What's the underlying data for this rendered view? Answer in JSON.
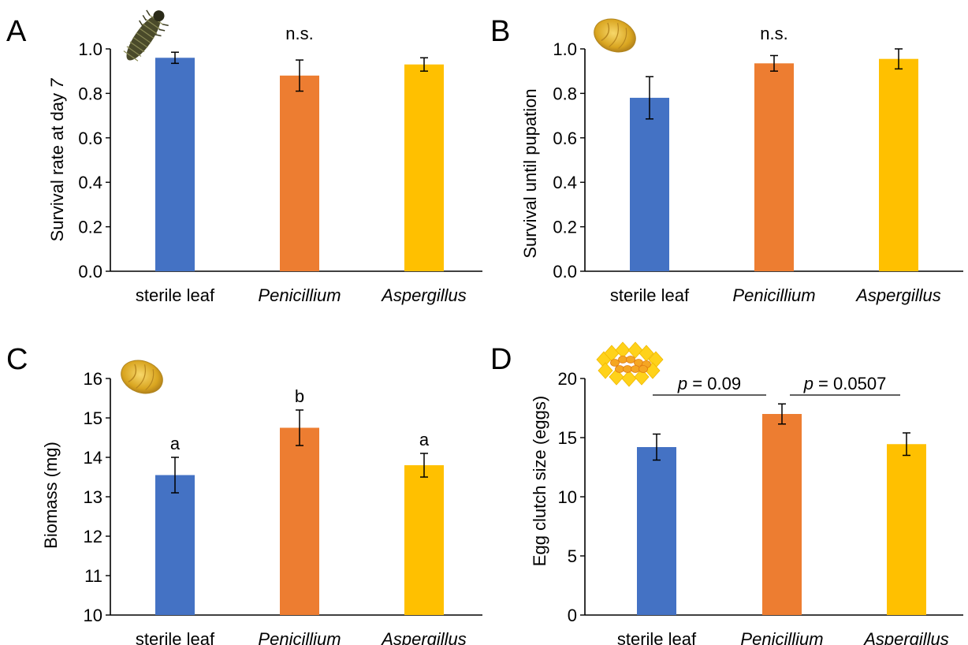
{
  "colors": {
    "sterile": "#4472C4",
    "penicillium": "#ED7D31",
    "aspergillus": "#FFC000"
  },
  "chart_data": [
    {
      "panel": "A",
      "type": "bar",
      "categories": [
        "sterile leaf",
        "Penicillium",
        "Aspergillus"
      ],
      "categories_italic": [
        false,
        true,
        true
      ],
      "values": [
        0.96,
        0.88,
        0.93
      ],
      "error": [
        0.025,
        0.07,
        0.03
      ],
      "ylabel_parts": [
        {
          "text": "Survival rate at day ",
          "italic": false
        },
        {
          "text": "7",
          "italic": true
        }
      ],
      "ylim": [
        0.0,
        1.0
      ],
      "yticks": [
        "0.0",
        "0.2",
        "0.4",
        "0.6",
        "0.8",
        "1.0"
      ],
      "annotations": [
        {
          "text": "n.s.",
          "category_index": 1
        }
      ],
      "icon": "beetle-larva-icon"
    },
    {
      "panel": "B",
      "type": "bar",
      "categories": [
        "sterile leaf",
        "Penicillium",
        "Aspergillus"
      ],
      "categories_italic": [
        false,
        true,
        true
      ],
      "values": [
        0.78,
        0.935,
        0.955
      ],
      "error": [
        0.095,
        0.035,
        0.045
      ],
      "ylabel_parts": [
        {
          "text": "Survival until pupation",
          "italic": false
        }
      ],
      "ylim": [
        0.0,
        1.0
      ],
      "yticks": [
        "0.0",
        "0.2",
        "0.4",
        "0.6",
        "0.8",
        "1.0"
      ],
      "annotations": [
        {
          "text": "n.s.",
          "category_index": 1
        }
      ],
      "icon": "pupa-icon"
    },
    {
      "panel": "C",
      "type": "bar",
      "categories": [
        "sterile leaf",
        "Penicillium",
        "Aspergillus"
      ],
      "categories_italic": [
        false,
        true,
        true
      ],
      "values": [
        13.55,
        14.75,
        13.8
      ],
      "error": [
        0.45,
        0.45,
        0.3
      ],
      "ylabel_parts": [
        {
          "text": "Biomass (mg)",
          "italic": false
        }
      ],
      "ylim": [
        10,
        16
      ],
      "yticks": [
        "10",
        "11",
        "12",
        "13",
        "14",
        "15",
        "16"
      ],
      "bar_labels": [
        "a",
        "b",
        "a"
      ],
      "icon": "pupa-icon"
    },
    {
      "panel": "D",
      "type": "bar",
      "categories": [
        "sterile leaf",
        "Penicillium",
        "Aspergillus"
      ],
      "categories_italic": [
        false,
        true,
        true
      ],
      "values": [
        14.2,
        17.0,
        14.45
      ],
      "error": [
        1.1,
        0.85,
        0.95
      ],
      "ylabel_parts": [
        {
          "text": "Egg clutch size (eggs)",
          "italic": false
        }
      ],
      "ylim": [
        0,
        20
      ],
      "yticks": [
        "0",
        "5",
        "10",
        "15",
        "20"
      ],
      "comparisons": [
        {
          "from": 0,
          "to": 1,
          "p_label": "p",
          "p_value": " = 0.09"
        },
        {
          "from": 1,
          "to": 2,
          "p_label": "p",
          "p_value": " = 0.0507"
        }
      ],
      "icon": "egg-clutch-icon"
    }
  ]
}
